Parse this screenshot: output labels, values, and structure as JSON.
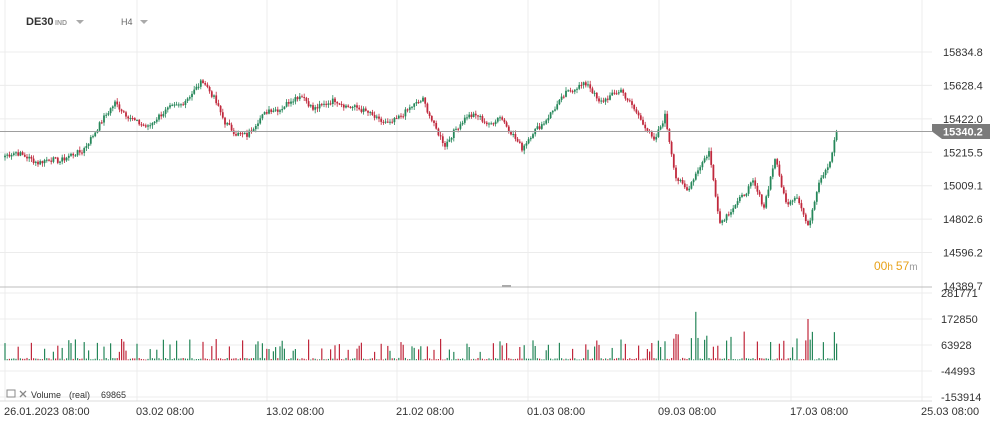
{
  "header": {
    "symbol": "DE30",
    "market": "IND",
    "timeframe": "H4"
  },
  "countdown": {
    "hours": "00",
    "h_unit": "h",
    "minutes": "57",
    "m_unit": "m"
  },
  "volume_legend": {
    "label": "Volume",
    "type": "(real)",
    "value": "69865"
  },
  "colors": {
    "up": "#26875a",
    "down": "#c0283c",
    "grid": "#ececec",
    "axis_text": "#333333",
    "price_line": "#9e9e9e",
    "price_badge": "#7b7b7b",
    "countdown": "#e8a21a"
  },
  "chart_data": [
    {
      "type": "candlestick",
      "timeframe": "H4",
      "symbol": "DE30",
      "y_ticks": [
        "15834.8",
        "15628.4",
        "15422.0",
        "15215.5",
        "15009.1",
        "14802.6",
        "14596.2",
        "14389.7"
      ],
      "ylim": [
        14389.7,
        15834.8
      ],
      "current_price": "15340.2",
      "x_ticks": [
        "26.01.2023 08:00",
        "03.02 08:00",
        "13.02 08:00",
        "21.02 08:00",
        "01.03 08:00",
        "09.03 08:00",
        "17.03 08:00",
        "25.03 08:00"
      ],
      "close_path": [
        [
          0,
          15195
        ],
        [
          5,
          15215
        ],
        [
          10,
          15185
        ],
        [
          15,
          15150
        ],
        [
          20,
          15175
        ],
        [
          25,
          15160
        ],
        [
          30,
          15200
        ],
        [
          35,
          15220
        ],
        [
          40,
          15320
        ],
        [
          45,
          15430
        ],
        [
          50,
          15520
        ],
        [
          55,
          15450
        ],
        [
          60,
          15400
        ],
        [
          65,
          15370
        ],
        [
          70,
          15440
        ],
        [
          75,
          15490
        ],
        [
          80,
          15510
        ],
        [
          85,
          15580
        ],
        [
          90,
          15660
        ],
        [
          95,
          15550
        ],
        [
          100,
          15400
        ],
        [
          105,
          15330
        ],
        [
          110,
          15320
        ],
        [
          115,
          15410
        ],
        [
          120,
          15480
        ],
        [
          125,
          15480
        ],
        [
          130,
          15540
        ],
        [
          135,
          15570
        ],
        [
          140,
          15480
        ],
        [
          145,
          15510
        ],
        [
          150,
          15540
        ],
        [
          155,
          15500
        ],
        [
          160,
          15490
        ],
        [
          165,
          15460
        ],
        [
          170,
          15410
        ],
        [
          175,
          15390
        ],
        [
          180,
          15440
        ],
        [
          185,
          15500
        ],
        [
          190,
          15540
        ],
        [
          195,
          15380
        ],
        [
          200,
          15260
        ],
        [
          205,
          15360
        ],
        [
          210,
          15440
        ],
        [
          215,
          15440
        ],
        [
          220,
          15380
        ],
        [
          225,
          15440
        ],
        [
          230,
          15340
        ],
        [
          235,
          15240
        ],
        [
          240,
          15340
        ],
        [
          245,
          15400
        ],
        [
          250,
          15490
        ],
        [
          255,
          15580
        ],
        [
          260,
          15620
        ],
        [
          265,
          15640
        ],
        [
          270,
          15520
        ],
        [
          275,
          15560
        ],
        [
          280,
          15600
        ],
        [
          285,
          15500
        ],
        [
          290,
          15400
        ],
        [
          295,
          15280
        ],
        [
          300,
          15440
        ],
        [
          305,
          15060
        ],
        [
          310,
          14980
        ],
        [
          315,
          15110
        ],
        [
          320,
          15220
        ],
        [
          325,
          14780
        ],
        [
          330,
          14860
        ],
        [
          335,
          14940
        ],
        [
          340,
          15030
        ],
        [
          345,
          14880
        ],
        [
          350,
          15180
        ],
        [
          355,
          14900
        ],
        [
          360,
          14950
        ],
        [
          365,
          14750
        ],
        [
          370,
          15040
        ],
        [
          375,
          15160
        ],
        [
          378,
          15340
        ]
      ]
    },
    {
      "type": "bar",
      "name": "Volume (real)",
      "y_ticks": [
        "281771",
        "172850",
        "63928",
        "-44993",
        "-153914"
      ],
      "ylim": [
        -153914,
        281771
      ],
      "last_value": "69865"
    }
  ]
}
